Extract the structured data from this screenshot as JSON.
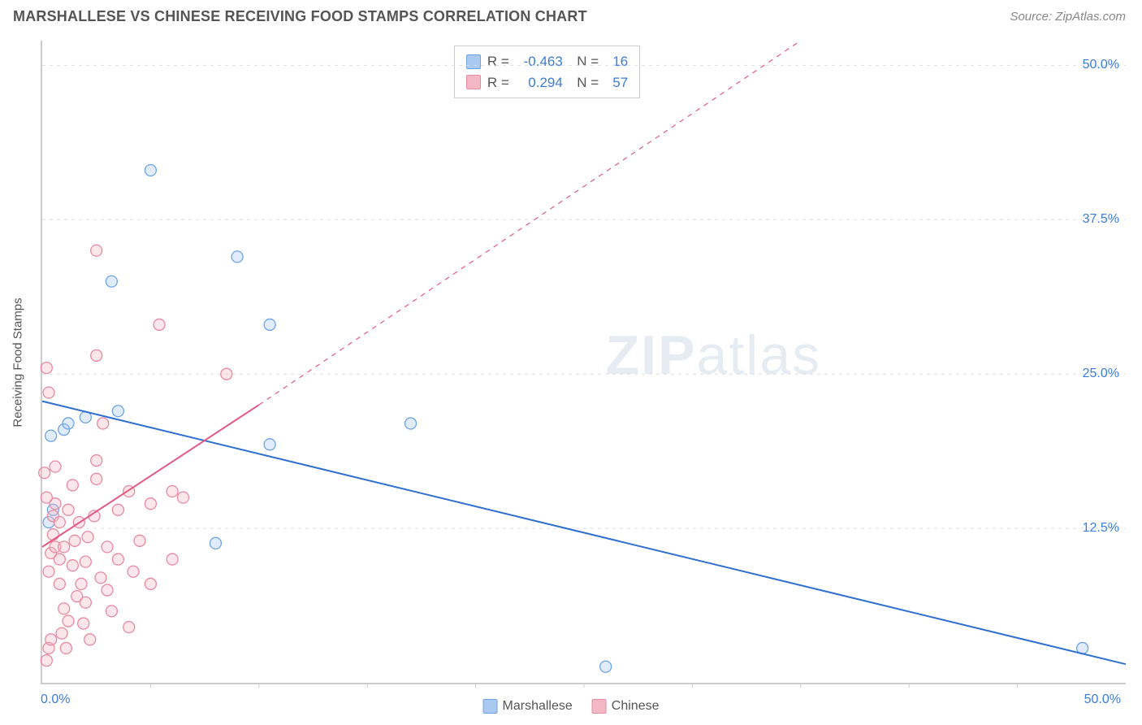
{
  "header": {
    "title": "MARSHALLESE VS CHINESE RECEIVING FOOD STAMPS CORRELATION CHART",
    "source": "Source: ZipAtlas.com"
  },
  "watermark": {
    "zip": "ZIP",
    "atlas": "atlas"
  },
  "chart": {
    "type": "scatter",
    "ylabel": "Receiving Food Stamps",
    "xlim": [
      0,
      50
    ],
    "ylim": [
      0,
      52
    ],
    "x_ticks_minor_step": 5,
    "x_min_label": "0.0%",
    "x_max_label": "50.0%",
    "y_ticks": [
      {
        "v": 12.5,
        "label": "12.5%"
      },
      {
        "v": 25.0,
        "label": "25.0%"
      },
      {
        "v": 37.5,
        "label": "37.5%"
      },
      {
        "v": 50.0,
        "label": "50.0%"
      }
    ],
    "grid_color": "#dddddd",
    "background_color": "#ffffff",
    "axis_label_color": "#3b7dd8",
    "marker_radius": 7,
    "marker_stroke_width": 1.3,
    "marker_fill_opacity": 0.35,
    "line_width": 2,
    "dash_pattern": "6 6",
    "series": [
      {
        "name": "Marshallese",
        "color_stroke": "#6ea4e6",
        "color_fill": "#a9c9f0",
        "regression_color": "#2f6fd0",
        "R": "-0.463",
        "N": "16",
        "reg_line": {
          "x1": 0,
          "y1": 22.8,
          "x2": 50,
          "y2": 1.5
        },
        "points": [
          {
            "x": 0.5,
            "y": 14.0
          },
          {
            "x": 1.0,
            "y": 20.5
          },
          {
            "x": 1.2,
            "y": 21.0
          },
          {
            "x": 3.2,
            "y": 32.5
          },
          {
            "x": 2.0,
            "y": 21.5
          },
          {
            "x": 3.5,
            "y": 22.0
          },
          {
            "x": 5.0,
            "y": 41.5
          },
          {
            "x": 0.3,
            "y": 13.0
          },
          {
            "x": 9.0,
            "y": 34.5
          },
          {
            "x": 10.5,
            "y": 29.0
          },
          {
            "x": 8.0,
            "y": 11.3
          },
          {
            "x": 10.5,
            "y": 19.3
          },
          {
            "x": 17.0,
            "y": 21.0
          },
          {
            "x": 26.0,
            "y": 1.3
          },
          {
            "x": 48.0,
            "y": 2.8
          },
          {
            "x": 0.4,
            "y": 20.0
          }
        ]
      },
      {
        "name": "Chinese",
        "color_stroke": "#e88aa2",
        "color_fill": "#f3b7c6",
        "regression_color": "#e15a84",
        "R": "0.294",
        "N": "57",
        "reg_line_solid": {
          "x1": 0,
          "y1": 11.0,
          "x2": 10,
          "y2": 22.5
        },
        "reg_line_dash": {
          "x1": 10,
          "y1": 22.5,
          "x2": 35,
          "y2": 52.0
        },
        "points": [
          {
            "x": 0.2,
            "y": 1.8
          },
          {
            "x": 0.3,
            "y": 2.8
          },
          {
            "x": 0.4,
            "y": 3.5
          },
          {
            "x": 0.5,
            "y": 13.5
          },
          {
            "x": 0.6,
            "y": 14.5
          },
          {
            "x": 0.4,
            "y": 10.5
          },
          {
            "x": 0.6,
            "y": 11.0
          },
          {
            "x": 0.5,
            "y": 12.0
          },
          {
            "x": 0.3,
            "y": 9.0
          },
          {
            "x": 0.8,
            "y": 8.0
          },
          {
            "x": 1.0,
            "y": 6.0
          },
          {
            "x": 1.2,
            "y": 5.0
          },
          {
            "x": 1.4,
            "y": 9.5
          },
          {
            "x": 1.0,
            "y": 11.0
          },
          {
            "x": 1.2,
            "y": 14.0
          },
          {
            "x": 1.4,
            "y": 16.0
          },
          {
            "x": 1.6,
            "y": 7.0
          },
          {
            "x": 1.8,
            "y": 8.0
          },
          {
            "x": 2.0,
            "y": 9.8
          },
          {
            "x": 2.0,
            "y": 6.5
          },
          {
            "x": 2.2,
            "y": 3.5
          },
          {
            "x": 2.4,
            "y": 13.5
          },
          {
            "x": 2.5,
            "y": 16.5
          },
          {
            "x": 2.5,
            "y": 18.0
          },
          {
            "x": 2.5,
            "y": 26.5
          },
          {
            "x": 2.5,
            "y": 35.0
          },
          {
            "x": 2.8,
            "y": 21.0
          },
          {
            "x": 3.0,
            "y": 11.0
          },
          {
            "x": 3.0,
            "y": 7.5
          },
          {
            "x": 3.2,
            "y": 5.8
          },
          {
            "x": 3.5,
            "y": 10.0
          },
          {
            "x": 3.5,
            "y": 14.0
          },
          {
            "x": 4.0,
            "y": 4.5
          },
          {
            "x": 4.0,
            "y": 15.5
          },
          {
            "x": 4.2,
            "y": 9.0
          },
          {
            "x": 4.5,
            "y": 11.5
          },
          {
            "x": 5.0,
            "y": 8.0
          },
          {
            "x": 5.0,
            "y": 14.5
          },
          {
            "x": 5.4,
            "y": 29.0
          },
          {
            "x": 6.0,
            "y": 10.0
          },
          {
            "x": 6.5,
            "y": 15.0
          },
          {
            "x": 8.5,
            "y": 25.0
          },
          {
            "x": 0.1,
            "y": 17.0
          },
          {
            "x": 0.2,
            "y": 15.0
          },
          {
            "x": 0.2,
            "y": 25.5
          },
          {
            "x": 0.3,
            "y": 23.5
          },
          {
            "x": 0.6,
            "y": 17.5
          },
          {
            "x": 0.8,
            "y": 13.0
          },
          {
            "x": 0.8,
            "y": 10.0
          },
          {
            "x": 0.9,
            "y": 4.0
          },
          {
            "x": 1.1,
            "y": 2.8
          },
          {
            "x": 1.5,
            "y": 11.5
          },
          {
            "x": 1.7,
            "y": 13.0
          },
          {
            "x": 1.9,
            "y": 4.8
          },
          {
            "x": 2.1,
            "y": 11.8
          },
          {
            "x": 2.7,
            "y": 8.5
          },
          {
            "x": 6.0,
            "y": 15.5
          }
        ]
      }
    ],
    "legend_bottom": [
      {
        "label": "Marshallese",
        "fill": "#a9c9f0",
        "stroke": "#6ea4e6"
      },
      {
        "label": "Chinese",
        "fill": "#f3b7c6",
        "stroke": "#e88aa2"
      }
    ]
  }
}
